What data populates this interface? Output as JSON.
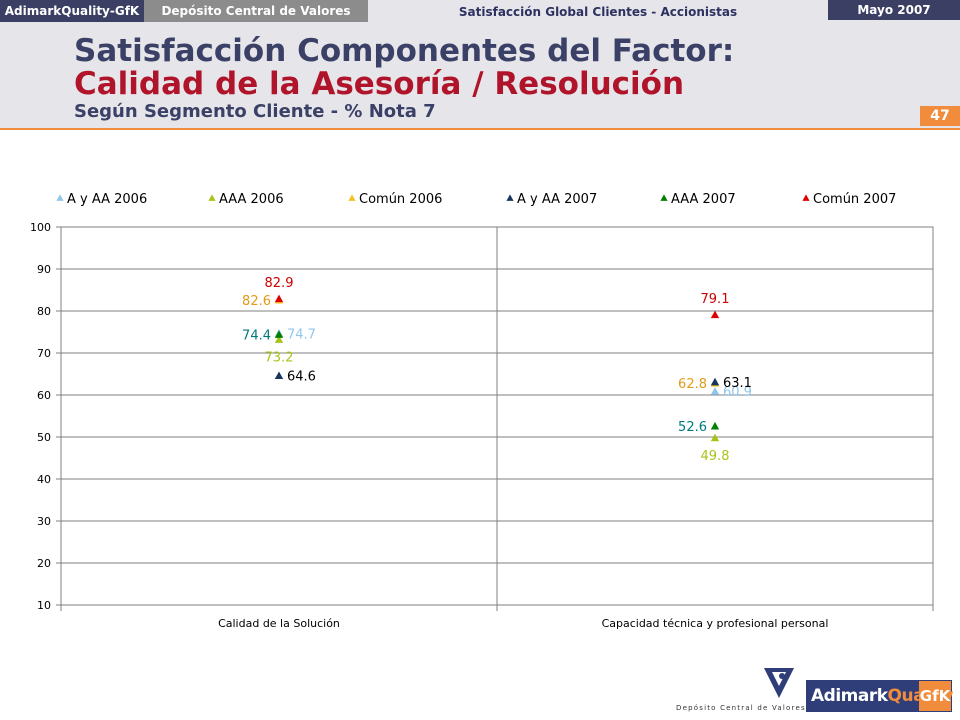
{
  "header": {
    "brand": "AdimarkQuality-GfK",
    "client": "Depósito Central de Valores",
    "study": "Satisfacción Global Clientes - Accionistas",
    "date": "Mayo 2007",
    "title_line1": "Satisfacción Componentes del Factor:",
    "title_line2": "Calidad de la Asesoría / Resolución",
    "subtitle": "Según Segmento Cliente - % Nota 7",
    "page_number": "47"
  },
  "chart_data": {
    "type": "scatter",
    "categories": [
      "Calidad de la Solución",
      "Capacidad técnica y profesional personal"
    ],
    "ylim": [
      10,
      100
    ],
    "yticks": [
      "10",
      "20",
      "30",
      "40",
      "50",
      "60",
      "70",
      "80",
      "90",
      "100"
    ],
    "grid": true,
    "legend_position": "top",
    "series": [
      {
        "name": "A y AA 2006",
        "color": "#8fc6ee",
        "values": [
          74.7,
          60.9
        ],
        "labels": [
          "74.7",
          "60.9"
        ],
        "label_side": [
          "right",
          "right"
        ]
      },
      {
        "name": "AAA 2006",
        "color": "#a8c41a",
        "values": [
          73.2,
          49.8
        ],
        "labels": [
          "73.2",
          "49.8"
        ],
        "label_side": [
          "below",
          "below"
        ]
      },
      {
        "name": "Común 2006",
        "color": "#f5c21b",
        "values": [
          82.6,
          62.8
        ],
        "labels": [
          "82.6",
          "62.8"
        ],
        "label_side": [
          "left",
          "left"
        ]
      },
      {
        "name": "A y AA 2007",
        "color": "#17365d",
        "values": [
          64.6,
          63.1
        ],
        "labels": [
          "64.6",
          "63.1"
        ],
        "label_side": [
          "right",
          "right"
        ]
      },
      {
        "name": "AAA 2007",
        "color": "#008000",
        "values": [
          74.4,
          52.6
        ],
        "labels": [
          "74.4",
          "52.6"
        ],
        "label_side": [
          "left",
          "left"
        ]
      },
      {
        "name": "Común 2007",
        "color": "#e00000",
        "values": [
          82.9,
          79.1
        ],
        "labels": [
          "82.9",
          "79.1"
        ],
        "label_side": [
          "above",
          "above"
        ]
      }
    ],
    "label_colors": [
      "#8fc6ee",
      "#a8c41a",
      "#e39a18",
      "#000000",
      "#007a7a",
      "#cc0000"
    ]
  },
  "footer": {
    "dcv_logo_text": "Depósito Central de Valores",
    "gfk_logo_text": "AdimarkQuality GfK"
  }
}
